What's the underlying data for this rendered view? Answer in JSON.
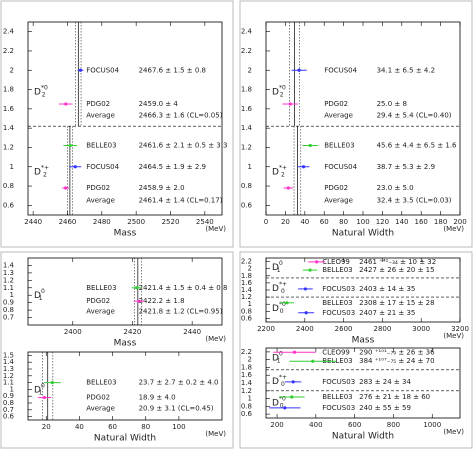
{
  "chart_data": [
    {
      "type": "errorbar",
      "x_label": "Mass",
      "x_unit": "(MeV)",
      "xlim": [
        2437,
        2550
      ],
      "xticks": [
        2440,
        2460,
        2480,
        2500,
        2520,
        2540
      ],
      "ylim": [
        0.5,
        2.5
      ],
      "yticks": [
        0.6,
        0.8,
        1,
        1.2,
        1.4,
        1.6,
        1.8,
        2,
        2.2,
        2.4
      ],
      "dividers": [
        1.42
      ],
      "groups": [
        {
          "base": "D",
          "sub": "2",
          "sup": "*0",
          "y": 1.78
        },
        {
          "base": "D",
          "sub": "2",
          "sup": "*+",
          "y": 0.95
        }
      ],
      "rows": [
        {
          "source": "FOCUS04",
          "result": "2467.6 ± 1.5 ± 0.8",
          "value": 2467.6,
          "error": 1.7,
          "y": 2.0,
          "color": "#3333ff"
        },
        {
          "source": "PDG02",
          "result": "2459.0 ± 4",
          "value": 2459.0,
          "error": 4,
          "y": 1.65,
          "color": "#ff33cc"
        },
        {
          "source": "Average",
          "result": "2466.3 ± 1.6 (CL=0.05)",
          "y": 1.53,
          "color": "#cc33cc"
        },
        {
          "source": "BELLE03",
          "result": "2461.6 ± 2.1 ± 0.5 ± 3.3",
          "value": 2461.6,
          "error": 4,
          "y": 1.22,
          "color": "#33cc33"
        },
        {
          "source": "FOCUS04",
          "result": "2464.5 ± 1.9 ± 2.9",
          "value": 2464.5,
          "error": 3.5,
          "y": 1.0,
          "color": "#3333ff"
        },
        {
          "source": "PDG02",
          "result": "2458.9 ± 2.0",
          "value": 2458.9,
          "error": 2,
          "y": 0.78,
          "color": "#ff33cc"
        },
        {
          "source": "Average",
          "result": "2461.4 ± 1.4 (CL=0.17)",
          "y": 0.65,
          "color": "#cc33cc"
        }
      ],
      "averages": [
        {
          "value": 2466.3,
          "error": 1.6,
          "ymin": 1.42,
          "ymax": 2.5
        },
        {
          "value": 2461.4,
          "error": 1.4,
          "ymin": 0.5,
          "ymax": 1.42
        }
      ]
    },
    {
      "type": "errorbar",
      "x_label": "Natural Width",
      "x_unit": "(MeV)",
      "xlim": [
        0,
        200
      ],
      "xticks": [
        0,
        20,
        40,
        60,
        80,
        100,
        120,
        140,
        160,
        180,
        200
      ],
      "ylim": [
        0.5,
        2.5
      ],
      "yticks": [
        0.6,
        0.8,
        1,
        1.2,
        1.4,
        1.6,
        1.8,
        2,
        2.2,
        2.4
      ],
      "dividers": [
        1.42
      ],
      "groups": [
        {
          "base": "D",
          "sub": "2",
          "sup": "*0",
          "y": 1.78
        },
        {
          "base": "D",
          "sub": "2",
          "sup": "*+",
          "y": 0.95
        }
      ],
      "rows": [
        {
          "source": "FOCUS04",
          "result": "34.1 ± 6.5 ± 4.2",
          "value": 34.1,
          "error": 7.8,
          "y": 2.0,
          "color": "#3333ff"
        },
        {
          "source": "PDG02",
          "result": "25.0 ± 8",
          "value": 25.0,
          "error": 8,
          "y": 1.65,
          "color": "#ff33cc"
        },
        {
          "source": "Average",
          "result": "29.4 ± 5.4 (CL=0.40)",
          "y": 1.53,
          "color": "#cc33cc"
        },
        {
          "source": "BELLE03",
          "result": "45.6 ± 4.4 ± 6.5 ± 1.6",
          "value": 45.6,
          "error": 8,
          "y": 1.22,
          "color": "#33cc33"
        },
        {
          "source": "FOCUS04",
          "result": "38.7 ± 5.3 ± 2.9",
          "value": 38.7,
          "error": 6,
          "y": 1.0,
          "color": "#3333ff"
        },
        {
          "source": "PDG02",
          "result": "23.0 ± 5.0",
          "value": 23.0,
          "error": 5,
          "y": 0.78,
          "color": "#ff33cc"
        },
        {
          "source": "Average",
          "result": "32.4 ± 3.5 (CL=0.03)",
          "y": 0.65,
          "color": "#cc33cc"
        }
      ],
      "averages": [
        {
          "value": 29.4,
          "error": 5.4,
          "ymin": 1.42,
          "ymax": 2.5
        },
        {
          "value": 32.4,
          "error": 3.5,
          "ymin": 0.5,
          "ymax": 1.42
        }
      ]
    },
    {
      "type": "errorbar",
      "x_label": "Mass",
      "x_unit": "(MeV)",
      "xlim": [
        2385,
        2450
      ],
      "xticks": [
        2400,
        2420,
        2440
      ],
      "ylim": [
        0.6,
        1.5
      ],
      "yticks": [
        0.7,
        0.8,
        0.9,
        1,
        1.1,
        1.2,
        1.3,
        1.4
      ],
      "dividers": [],
      "groups": [
        {
          "base": "D",
          "sub": "1",
          "sup": "0",
          "y": 1.0
        }
      ],
      "rows": [
        {
          "source": "BELLE03",
          "result": "2421.4 ± 1.5 ± 0.4 ± 0.8",
          "value": 2421.4,
          "error": 1.7,
          "y": 1.1,
          "color": "#33cc33"
        },
        {
          "source": "PDG02",
          "result": "2422.2 ± 1.8",
          "value": 2422.2,
          "error": 1.8,
          "y": 0.92,
          "color": "#ff33cc"
        },
        {
          "source": "Average",
          "result": "2421.8 ± 1.2 (CL=0.95)",
          "y": 0.78,
          "color": "#cc33cc"
        }
      ],
      "averages": [
        {
          "value": 2421.8,
          "error": 1.2,
          "ymin": 0.6,
          "ymax": 1.5
        }
      ]
    },
    {
      "type": "errorbar",
      "x_label": "Natural Width",
      "x_unit": "(MeV)",
      "xlim": [
        9,
        126
      ],
      "xticks": [
        20,
        40,
        60,
        80,
        100
      ],
      "ylim": [
        0.55,
        1.55
      ],
      "yticks": [
        0.6,
        0.7,
        0.8,
        0.9,
        1,
        1.1,
        1.2,
        1.3,
        1.4,
        1.5
      ],
      "dividers": [],
      "groups": [
        {
          "base": "D",
          "sub": "1",
          "sup": "0",
          "y": 1.0
        }
      ],
      "rows": [
        {
          "source": "BELLE03",
          "result": "23.7 ± 2.7 ± 0.2 ± 4.0",
          "value": 23.7,
          "error": 5,
          "y": 1.1,
          "color": "#33cc33"
        },
        {
          "source": "PDG02",
          "result": "18.9 ± 4.0",
          "value": 18.9,
          "error": 4,
          "y": 0.88,
          "color": "#ff33cc"
        },
        {
          "source": "Average",
          "result": "20.9 ± 3.1 (CL=0.45)",
          "y": 0.72,
          "color": "#cc33cc"
        }
      ],
      "averages": [
        {
          "value": 20.9,
          "error": 3.1,
          "ymin": 0.55,
          "ymax": 1.55
        }
      ]
    },
    {
      "type": "errorbar",
      "x_label": "Mass",
      "x_unit": "(MeV)",
      "xlim": [
        2200,
        3200
      ],
      "xticks": [
        2200,
        2400,
        2600,
        2800,
        3000,
        3200
      ],
      "ylim": [
        0.5,
        2.3
      ],
      "yticks": [
        0.6,
        0.8,
        1,
        1.2,
        1.4,
        1.6,
        1.8,
        2,
        2.2
      ],
      "dividers": [
        1.74,
        1.2
      ],
      "groups": [
        {
          "base": "D",
          "sub": "1",
          "sup": "0",
          "y": 2.05
        },
        {
          "base": "D",
          "sub": "0",
          "sup": "*+",
          "y": 1.45
        },
        {
          "base": "D",
          "sub": "0",
          "sup": "*0",
          "y": 0.9
        }
      ],
      "rows": [
        {
          "source": "CLEO99",
          "result": "2461 ⁺⁴¹₋₃₄ ± 10 ± 32",
          "value": 2461,
          "error": 45,
          "y": 2.19,
          "color": "#ff33cc"
        },
        {
          "source": "BELLE03",
          "result": "2427 ± 26 ± 20 ± 15",
          "value": 2427,
          "error": 37,
          "y": 1.96,
          "color": "#33cc33"
        },
        {
          "source": "FOCUS03",
          "result": "2403 ± 14 ± 35",
          "value": 2403,
          "error": 38,
          "y": 1.43,
          "color": "#3333ff"
        },
        {
          "source": "BELLE03",
          "result": "2308 ± 17 ± 15 ± 28",
          "value": 2308,
          "error": 36,
          "y": 1.04,
          "color": "#33cc33"
        },
        {
          "source": "FOCUS03",
          "result": "2407 ± 21 ± 35",
          "value": 2407,
          "error": 41,
          "y": 0.76,
          "color": "#3333ff"
        }
      ],
      "averages": []
    },
    {
      "type": "errorbar",
      "x_label": "Natural Width",
      "x_unit": "(MeV)",
      "xlim": [
        143,
        1143
      ],
      "xticks": [
        200,
        400,
        600,
        800,
        1000
      ],
      "ylim": [
        0.5,
        2.3
      ],
      "yticks": [
        0.6,
        0.8,
        1,
        1.2,
        1.4,
        1.6,
        1.8,
        2,
        2.2
      ],
      "dividers": [
        1.74,
        1.2
      ],
      "groups": [
        {
          "base": "D",
          "sub": "1",
          "sup": "0",
          "y": 2.05
        },
        {
          "base": "D",
          "sub": "0",
          "sup": "*+",
          "y": 1.45
        },
        {
          "base": "D",
          "sub": "0",
          "sup": "*0",
          "y": 0.9
        }
      ],
      "rows": [
        {
          "source": "CLEO99",
          "result": "290 ⁺¹⁰¹₋₇₉ ± 26 ± 36",
          "value": 290,
          "error": 110,
          "y": 2.19,
          "color": "#ff33cc"
        },
        {
          "source": "BELLE03",
          "result": "384 ⁺¹⁰⁷₋₇₅ ± 24 ± 70",
          "value": 384,
          "error": 120,
          "y": 1.96,
          "color": "#33cc33"
        },
        {
          "source": "FOCUS03",
          "result": "283 ± 24 ± 34",
          "value": 283,
          "error": 42,
          "y": 1.43,
          "color": "#3333ff"
        },
        {
          "source": "BELLE03",
          "result": "276 ± 21 ± 18 ± 60",
          "value": 276,
          "error": 66,
          "y": 1.04,
          "color": "#33cc33"
        },
        {
          "source": "FOCUS03",
          "result": "240 ± 55 ± 59",
          "value": 240,
          "error": 81,
          "y": 0.76,
          "color": "#3333ff"
        }
      ],
      "averages": []
    }
  ]
}
